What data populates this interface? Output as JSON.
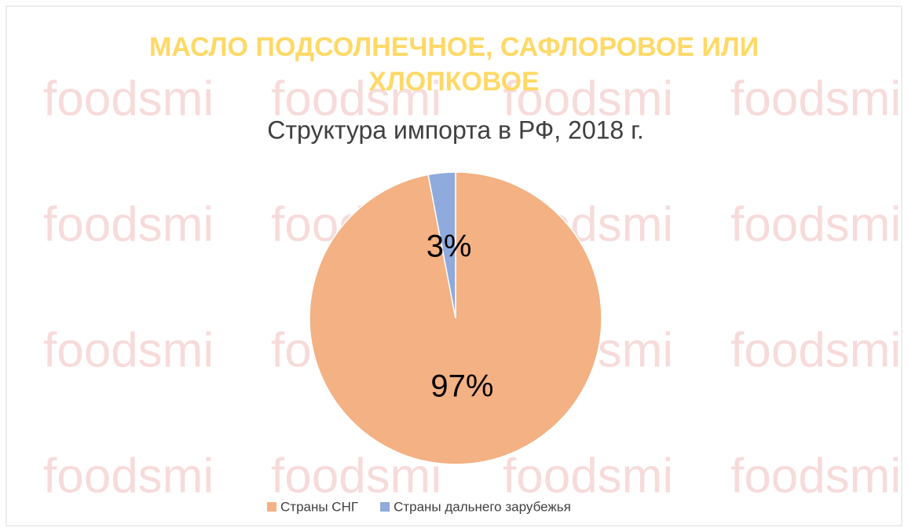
{
  "watermark": "foodsmi",
  "chart_data": {
    "type": "pie",
    "title": "МАСЛО ПОДСОЛНЕЧНОЕ, САФЛОРОВОЕ ИЛИ ХЛОПКОВОЕ",
    "subtitle": "Структура импорта в РФ, 2018 г.",
    "categories": [
      "Страны СНГ",
      "Страны дальнего зарубежья"
    ],
    "values": [
      97,
      3
    ],
    "value_labels": [
      "97%",
      "3%"
    ],
    "colors": [
      "#f4b183",
      "#8faadc"
    ],
    "legend": "bottom"
  }
}
